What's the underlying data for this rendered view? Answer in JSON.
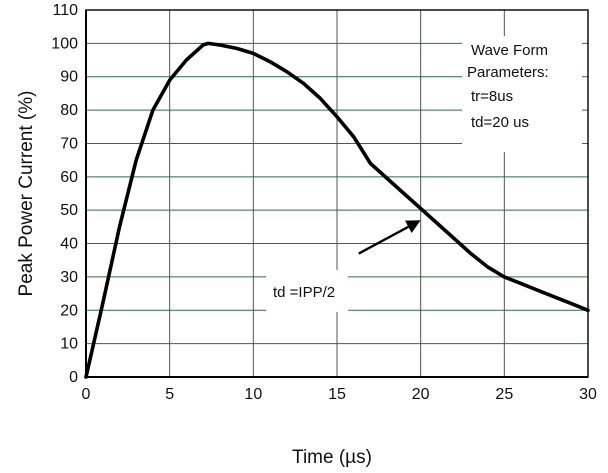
{
  "chart_data": {
    "type": "line",
    "title": "",
    "xlabel": "Time (µs)",
    "ylabel": "Peak Power Current (%)",
    "xlim": [
      0,
      30
    ],
    "ylim": [
      0,
      110
    ],
    "xticks": [
      0,
      5,
      10,
      15,
      20,
      25,
      30
    ],
    "yticks": [
      0,
      10,
      20,
      30,
      40,
      50,
      60,
      70,
      80,
      90,
      100,
      110
    ],
    "grid": true,
    "colors": {
      "line": "#000000",
      "grid_horizontal": "#2f6b4a",
      "grid_vertical": "#555555",
      "axis": "#000000"
    },
    "series": [
      {
        "x": [
          0,
          1,
          2,
          3,
          4,
          5,
          6,
          7,
          7.3,
          8,
          9,
          10,
          11,
          12,
          13,
          14,
          15,
          16,
          17,
          18,
          19,
          20,
          21,
          22,
          23,
          24,
          25,
          26,
          27,
          28,
          29,
          30
        ],
        "values": [
          0,
          22,
          45,
          65,
          80,
          89,
          95,
          99.5,
          100,
          99.5,
          98.5,
          97,
          94.5,
          91.5,
          88,
          83.5,
          78,
          72,
          64,
          59.5,
          55,
          50.5,
          46,
          41.5,
          37,
          33,
          30,
          28,
          26,
          24,
          22,
          20
        ]
      }
    ],
    "annotations": [
      {
        "id": "params",
        "lines": [
          "Wave Form",
          "Parameters:",
          "tr=8us",
          "td=20 us"
        ]
      },
      {
        "id": "td-label",
        "text": "td =IPP/2",
        "arrow_from": [
          16.3,
          37
        ],
        "arrow_to": [
          20,
          47
        ]
      }
    ]
  }
}
